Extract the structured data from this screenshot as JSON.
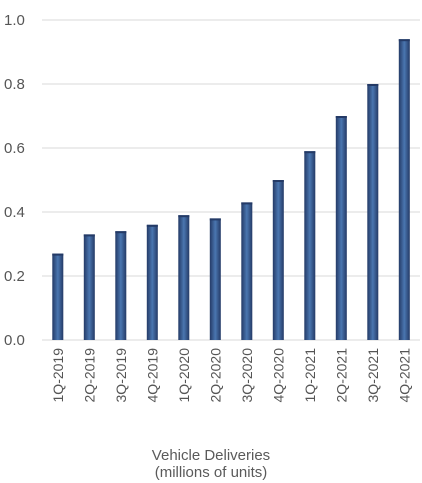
{
  "chart_data": {
    "type": "bar",
    "title": "",
    "xlabel": [
      "Vehicle Deliveries",
      "(millions of units)"
    ],
    "ylabel": "",
    "ylim": [
      0,
      1.0
    ],
    "yticks": [
      "0.0",
      "0.2",
      "0.4",
      "0.6",
      "0.8",
      "1.0"
    ],
    "grid": true,
    "categories": [
      "1Q-2019",
      "2Q-2019",
      "3Q-2019",
      "4Q-2019",
      "1Q-2020",
      "2Q-2020",
      "3Q-2020",
      "4Q-2020",
      "1Q-2021",
      "2Q-2021",
      "3Q-2021",
      "4Q-2021"
    ],
    "values": [
      0.27,
      0.33,
      0.34,
      0.36,
      0.39,
      0.38,
      0.43,
      0.5,
      0.59,
      0.7,
      0.8,
      0.94
    ],
    "colors": {
      "bar_dark": "#243a66",
      "bar_light": "#4a76b0",
      "grid": "#d8d8d8",
      "text": "#555555"
    }
  }
}
